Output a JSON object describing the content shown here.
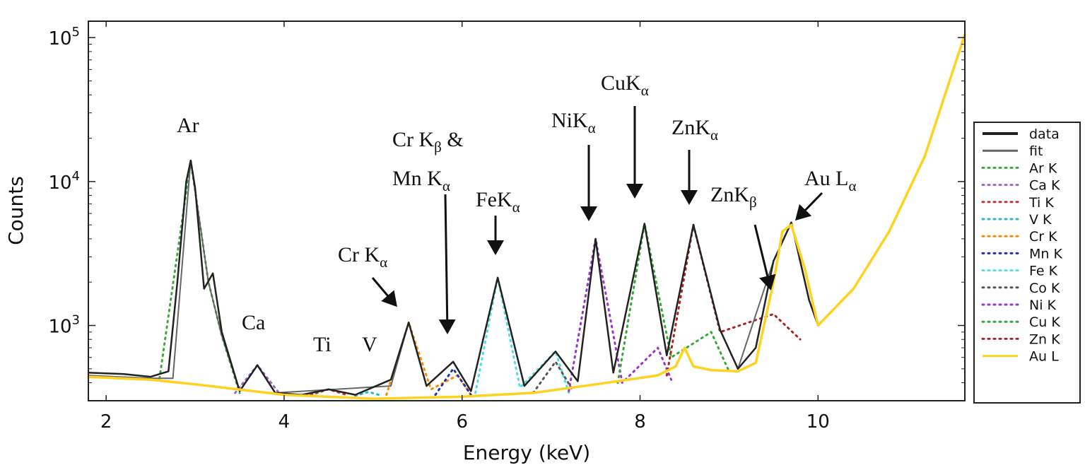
{
  "chart_data": {
    "type": "line",
    "xlabel": "Energy (keV)",
    "ylabel": "Counts",
    "xlim": [
      1.8,
      11.65
    ],
    "ylim": [
      300,
      130000
    ],
    "y_scale": "log",
    "x_ticks": [
      2,
      4,
      6,
      8,
      10
    ],
    "y_ticks": [
      {
        "value": 1000,
        "base": "10",
        "exp": "3"
      },
      {
        "value": 10000,
        "base": "10",
        "exp": "4"
      },
      {
        "value": 100000,
        "base": "10",
        "exp": "5"
      }
    ],
    "legend_position": "outside-right",
    "series": [
      {
        "name": "data",
        "color": "#222222",
        "style": "solid",
        "x": [
          1.8,
          2.2,
          2.5,
          2.7,
          2.8,
          2.9,
          2.95,
          3.0,
          3.1,
          3.2,
          3.3,
          3.5,
          3.7,
          3.9,
          4.2,
          4.5,
          4.8,
          5.2,
          5.4,
          5.6,
          5.9,
          6.1,
          6.4,
          6.7,
          7.05,
          7.3,
          7.5,
          7.7,
          8.05,
          8.3,
          8.6,
          8.9,
          9.1,
          9.3,
          9.5,
          9.7,
          9.9,
          10.0,
          10.4,
          10.8,
          11.2,
          11.65
        ],
        "y": [
          470,
          460,
          440,
          480,
          2000,
          10000,
          14000,
          9000,
          1800,
          2300,
          900,
          350,
          530,
          340,
          330,
          360,
          330,
          420,
          1050,
          380,
          560,
          350,
          2150,
          380,
          660,
          410,
          4000,
          470,
          5100,
          620,
          5000,
          930,
          500,
          700,
          2800,
          5200,
          1500,
          1000,
          1800,
          4500,
          15000,
          105000
        ]
      },
      {
        "name": "fit",
        "color": "#666666",
        "style": "solid",
        "x": [
          1.8,
          2.5,
          2.75,
          2.95,
          3.15,
          3.3,
          3.5,
          3.7,
          3.9,
          5.2,
          5.4,
          5.6,
          5.9,
          6.1,
          6.4,
          6.7,
          7.05,
          7.3,
          7.5,
          7.7,
          8.05,
          8.3,
          8.6,
          8.9,
          9.1,
          9.5,
          9.7,
          9.9,
          10.0,
          10.4,
          10.8,
          11.2,
          11.65
        ],
        "y": [
          450,
          430,
          430,
          14000,
          2000,
          850,
          350,
          530,
          340,
          380,
          1050,
          380,
          560,
          350,
          2150,
          380,
          660,
          410,
          4000,
          470,
          5100,
          620,
          5000,
          930,
          500,
          2800,
          5200,
          1500,
          1000,
          1800,
          4500,
          15000,
          105000
        ]
      },
      {
        "name": "Ar K",
        "color": "#3aa83a",
        "style": "dotted",
        "x": [
          2.6,
          2.95,
          3.15,
          3.3,
          3.5
        ],
        "y": [
          430,
          14000,
          2000,
          850,
          340
        ]
      },
      {
        "name": "Ca K",
        "color": "#9966cc",
        "style": "dotted",
        "x": [
          3.45,
          3.7,
          3.95
        ],
        "y": [
          340,
          530,
          335
        ]
      },
      {
        "name": "Ti K",
        "color": "#cc3333",
        "style": "dotted",
        "x": [
          4.3,
          4.5,
          4.7
        ],
        "y": [
          330,
          360,
          330
        ]
      },
      {
        "name": "V K",
        "color": "#22bbcc",
        "style": "dotted",
        "x": [
          4.8,
          4.95,
          5.1
        ],
        "y": [
          325,
          345,
          325
        ]
      },
      {
        "name": "Cr K",
        "color": "#ff8800",
        "style": "dotted",
        "x": [
          5.15,
          5.4,
          5.65,
          5.95,
          6.1
        ],
        "y": [
          330,
          1050,
          360,
          450,
          330
        ]
      },
      {
        "name": "Mn K",
        "color": "#2233aa",
        "style": "dotted",
        "x": [
          5.7,
          5.9,
          6.1
        ],
        "y": [
          330,
          500,
          330
        ]
      },
      {
        "name": "Fe K",
        "color": "#55dddd",
        "style": "dotted",
        "x": [
          6.15,
          6.4,
          6.65,
          7.05,
          7.2
        ],
        "y": [
          340,
          2150,
          370,
          660,
          340
        ]
      },
      {
        "name": "Co K",
        "color": "#555555",
        "style": "dotted",
        "x": [
          6.8,
          7.05,
          7.25
        ],
        "y": [
          340,
          560,
          350
        ]
      },
      {
        "name": "Ni K",
        "color": "#9933cc",
        "style": "dotted",
        "x": [
          7.2,
          7.5,
          7.8,
          8.2,
          8.35
        ],
        "y": [
          350,
          4000,
          400,
          700,
          420
        ]
      },
      {
        "name": "Cu K",
        "color": "#33aa33",
        "style": "dotted",
        "x": [
          7.75,
          8.05,
          8.35,
          8.8,
          9.0
        ],
        "y": [
          400,
          5100,
          600,
          900,
          480
        ]
      },
      {
        "name": "Zn K",
        "color": "#aa2222",
        "style": "dotted",
        "x": [
          8.3,
          8.6,
          8.9,
          9.5,
          9.8
        ],
        "y": [
          450,
          5000,
          900,
          1200,
          800
        ]
      },
      {
        "name": "Au L",
        "color": "#ffd21f",
        "style": "solid",
        "x": [
          1.8,
          2.5,
          3.0,
          4.0,
          5.0,
          6.0,
          6.8,
          7.5,
          8.2,
          8.4,
          8.5,
          8.6,
          8.8,
          9.1,
          9.3,
          9.5,
          9.6,
          9.7,
          9.85,
          10.0,
          10.4,
          10.8,
          11.2,
          11.65
        ],
        "y": [
          440,
          420,
          390,
          330,
          310,
          320,
          340,
          390,
          450,
          520,
          700,
          520,
          490,
          480,
          550,
          2000,
          4500,
          5000,
          2500,
          1000,
          1800,
          4500,
          15000,
          105000
        ]
      }
    ],
    "annotations": [
      {
        "main": "Ar"
      },
      {
        "main": "Ca"
      },
      {
        "main": "Ti"
      },
      {
        "main": "V"
      },
      {
        "main": "Cr K",
        "sub": "α"
      },
      {
        "main": "Cr K",
        "sub": "β",
        "tail": " &"
      },
      {
        "main": "Mn K",
        "sub": "α"
      },
      {
        "main": "FeK",
        "sub": "α"
      },
      {
        "main": "NiK",
        "sub": "α"
      },
      {
        "main": "CuK",
        "sub": "α"
      },
      {
        "main": "ZnK",
        "sub": "α"
      },
      {
        "main": "ZnK",
        "sub": "β"
      },
      {
        "main": "Au L",
        "sub": "α"
      }
    ]
  }
}
